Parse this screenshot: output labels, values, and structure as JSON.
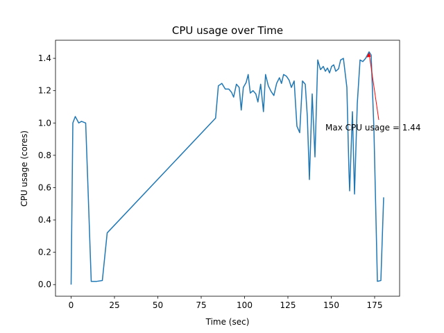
{
  "chart_data": {
    "type": "line",
    "title": "CPU usage over Time",
    "x_label": "Time (sec)",
    "y_label": "CPU usage (cores)",
    "x": [
      0,
      1,
      2.4,
      4.4,
      6,
      8.4,
      9.6,
      11.6,
      14.8,
      18,
      20.8,
      83.3,
      84.9,
      86.9,
      88.9,
      90.9,
      92.5,
      93.7,
      95.3,
      96.9,
      98.1,
      99.3,
      100.9,
      102.1,
      103.3,
      104.9,
      106.5,
      107.7,
      109.3,
      110.9,
      112.1,
      113.7,
      115.3,
      116.9,
      118.5,
      120.1,
      121.3,
      122.5,
      124.1,
      125.7,
      127,
      128.6,
      130.2,
      131.8,
      133.4,
      135,
      136.2,
      137.4,
      139,
      140.6,
      142.2,
      143.8,
      145.4,
      146.6,
      147.8,
      149,
      150.2,
      151.4,
      152.6,
      154.2,
      155.4,
      157,
      159,
      160.2,
      160.6,
      162.2,
      163.4,
      165,
      166.6,
      168.2,
      169.8,
      171.8,
      173,
      174.6,
      176.6,
      178.6,
      180.2
    ],
    "values": [
      0,
      1.0,
      1.04,
      1.0,
      1.01,
      1.0,
      0.64,
      0.02,
      0.02,
      0.025,
      0.32,
      1.03,
      1.23,
      1.245,
      1.21,
      1.21,
      1.19,
      1.16,
      1.24,
      1.22,
      1.08,
      1.22,
      1.25,
      1.3,
      1.185,
      1.2,
      1.18,
      1.13,
      1.24,
      1.07,
      1.3,
      1.23,
      1.195,
      1.17,
      1.245,
      1.28,
      1.245,
      1.3,
      1.29,
      1.265,
      1.22,
      1.26,
      0.98,
      0.94,
      1.26,
      1.24,
      1.04,
      0.65,
      1.18,
      0.79,
      1.39,
      1.33,
      1.35,
      1.32,
      1.34,
      1.31,
      1.35,
      1.36,
      1.32,
      1.335,
      1.39,
      1.4,
      1.22,
      0.7,
      0.58,
      1.07,
      0.56,
      1.12,
      1.39,
      1.38,
      1.4,
      1.44,
      1.42,
      0.96,
      0.02,
      0.025,
      0.54
    ],
    "color": "#1f77b4",
    "xlim": [
      -9,
      189.4
    ],
    "ylim": [
      -0.072,
      1.512
    ],
    "xticks": [
      0,
      25,
      50,
      75,
      100,
      125,
      150,
      175
    ],
    "yticks": [
      {
        "value": 0,
        "label": "0.0"
      },
      0.2,
      0.4,
      0.6,
      0.8,
      {
        "value": 1,
        "label": "1.0"
      },
      1.2,
      1.4
    ],
    "annotation": {
      "text": "Max CPU usage = 1.44",
      "x": 171.8,
      "y": 1.44,
      "color": "red"
    }
  }
}
